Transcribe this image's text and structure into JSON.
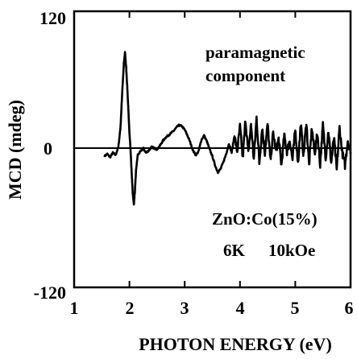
{
  "chart_data": {
    "type": "line",
    "title": "",
    "xlabel": "PHOTON ENERGY (eV)",
    "ylabel": "MCD (mdeg)",
    "xlim": [
      1,
      6
    ],
    "ylim": [
      -120,
      120
    ],
    "x_ticks": [
      "1",
      "2",
      "3",
      "4",
      "5",
      "6"
    ],
    "y_ticks": [
      "120",
      "0",
      "-120"
    ],
    "grid": false,
    "zero_line": true,
    "line_color": "#000000",
    "annotations": {
      "component_line1": "paramagnetic",
      "component_line2": "component",
      "sample": "ZnO:Co(15%)",
      "temperature": "6K",
      "field": "10kOe"
    },
    "series": [
      {
        "x": [
          1.55,
          1.6,
          1.65,
          1.7,
          1.75,
          1.8,
          1.84,
          1.87,
          1.9,
          1.92,
          1.94,
          1.96,
          1.98,
          2.0,
          2.02,
          2.04,
          2.06,
          2.08,
          2.1,
          2.12,
          2.15,
          2.2,
          2.25,
          2.3,
          2.35,
          2.4,
          2.45,
          2.5,
          2.55,
          2.6,
          2.65,
          2.7,
          2.75,
          2.8,
          2.85,
          2.9,
          2.95,
          3.0,
          3.05,
          3.1,
          3.15,
          3.2,
          3.25,
          3.3,
          3.35,
          3.4,
          3.45,
          3.5,
          3.55,
          3.6,
          3.65,
          3.7,
          3.75,
          3.8,
          3.85,
          3.9,
          3.95,
          4.0,
          4.05,
          4.1,
          4.15,
          4.2,
          4.25,
          4.3,
          4.35,
          4.4,
          4.45,
          4.5,
          4.55,
          4.6,
          4.65,
          4.7,
          4.75,
          4.8,
          4.85,
          4.9,
          4.95,
          5.0,
          5.05,
          5.1,
          5.15,
          5.2,
          5.25,
          5.3,
          5.35,
          5.4,
          5.45,
          5.5,
          5.55,
          5.6,
          5.65,
          5.7,
          5.75,
          5.8,
          5.85,
          5.9,
          5.95,
          6.0
        ],
        "values": [
          -6,
          -4,
          -7,
          -3,
          -5,
          2,
          20,
          50,
          75,
          84,
          72,
          55,
          35,
          15,
          0,
          -20,
          -38,
          -48,
          -36,
          -18,
          -5,
          -2,
          1,
          -3,
          -1,
          2,
          1,
          0,
          3,
          7,
          10,
          12,
          14,
          16,
          19,
          21,
          20,
          17,
          12,
          6,
          -1,
          -5,
          -2,
          8,
          12,
          7,
          0,
          -6,
          -14,
          -20,
          -17,
          -11,
          -4,
          5,
          -3,
          12,
          -2,
          20,
          -8,
          26,
          -4,
          22,
          -9,
          28,
          -12,
          19,
          -3,
          22,
          -10,
          14,
          -1,
          9,
          -14,
          12,
          -2,
          8,
          -9,
          17,
          -12,
          22,
          -6,
          24,
          -14,
          19,
          -4,
          14,
          -13,
          21,
          -7,
          16,
          -12,
          10,
          -18,
          19,
          -3,
          -14,
          8,
          -4
        ]
      }
    ]
  }
}
